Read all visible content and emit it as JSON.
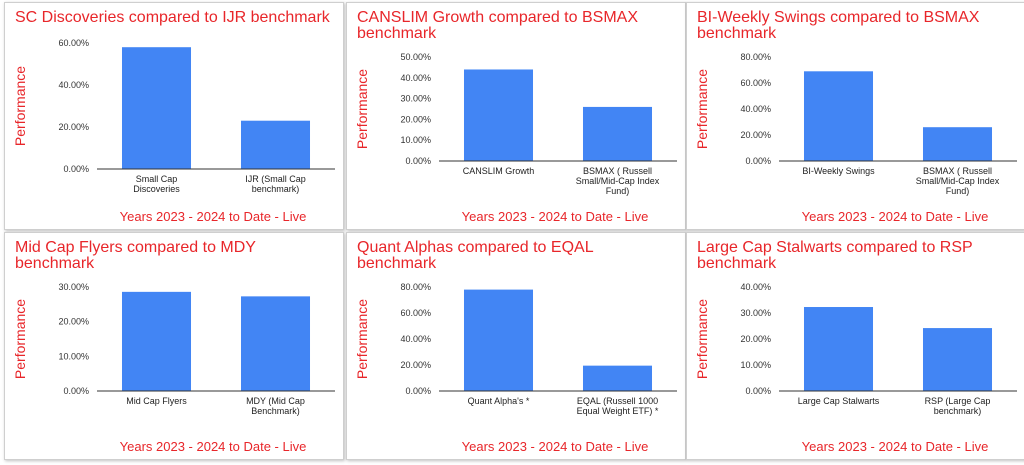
{
  "chart_data": [
    {
      "type": "bar",
      "title": "SC Discoveries compared to IJR benchmark",
      "ylabel": "Performance",
      "xlabel": "Years 2023 - 2024 to Date - Live",
      "categories": [
        "Small Cap Discoveries",
        "IJR (Small Cap benchmark)"
      ],
      "values": [
        58,
        23
      ],
      "color": "#4285f4",
      "ylim": [
        0,
        60
      ],
      "yticks": [
        {
          "value": 0,
          "label": "0.00%"
        },
        {
          "value": 20,
          "label": "20.00%"
        },
        {
          "value": 40,
          "label": "40.00%"
        },
        {
          "value": 60,
          "label": "60.00%"
        }
      ],
      "grid": false
    },
    {
      "type": "bar",
      "title": "CANSLIM Growth compared to BSMAX benchmark",
      "ylabel": "Performance",
      "xlabel": "Years 2023 - 2024 to Date - Live",
      "categories": [
        "CANSLIM Growth",
        "BSMAX ( Russell Small/Mid-Cap Index Fund)"
      ],
      "values": [
        44,
        26
      ],
      "color": "#4285f4",
      "ylim": [
        0,
        50
      ],
      "yticks": [
        {
          "value": 0,
          "label": "0.00%"
        },
        {
          "value": 10,
          "label": "10.00%"
        },
        {
          "value": 20,
          "label": "20.00%"
        },
        {
          "value": 30,
          "label": "30.00%"
        },
        {
          "value": 40,
          "label": "40.00%"
        },
        {
          "value": 50,
          "label": "50.00%"
        }
      ],
      "grid": false
    },
    {
      "type": "bar",
      "title": "BI-Weekly Swings compared to BSMAX benchmark",
      "ylabel": "Performance",
      "xlabel": "Years 2023 - 2024 to Date - Live",
      "categories": [
        "BI-Weekly Swings",
        "BSMAX ( Russell Small/Mid-Cap Index Fund)"
      ],
      "values": [
        69,
        26
      ],
      "color": "#4285f4",
      "ylim": [
        0,
        80
      ],
      "yticks": [
        {
          "value": 0,
          "label": "0.00%"
        },
        {
          "value": 20,
          "label": "20.00%"
        },
        {
          "value": 40,
          "label": "40.00%"
        },
        {
          "value": 60,
          "label": "60.00%"
        },
        {
          "value": 80,
          "label": "80.00%"
        }
      ],
      "grid": false
    },
    {
      "type": "bar",
      "title": "Mid Cap Flyers compared to MDY benchmark",
      "ylabel": "Performance",
      "xlabel": "Years 2023 - 2024 to Date - Live",
      "categories": [
        "Mid Cap Flyers",
        "MDY (Mid Cap Benchmark)"
      ],
      "values": [
        28.6,
        27.3
      ],
      "color": "#4285f4",
      "ylim": [
        0,
        30
      ],
      "yticks": [
        {
          "value": 0,
          "label": "0.00%"
        },
        {
          "value": 10,
          "label": "10.00%"
        },
        {
          "value": 20,
          "label": "20.00%"
        },
        {
          "value": 30,
          "label": "30.00%"
        }
      ],
      "grid": false
    },
    {
      "type": "bar",
      "title": "Quant Alphas compared to EQAL benchmark",
      "ylabel": "Performance",
      "xlabel": "Years 2023 - 2024 to Date - Live",
      "categories": [
        "Quant Alpha's   *",
        "EQAL (Russell 1000 Equal Weight ETF)   *"
      ],
      "values": [
        78,
        19.5
      ],
      "color": "#4285f4",
      "ylim": [
        0,
        80
      ],
      "yticks": [
        {
          "value": 0,
          "label": "0.00%"
        },
        {
          "value": 20,
          "label": "20.00%"
        },
        {
          "value": 40,
          "label": "40.00%"
        },
        {
          "value": 60,
          "label": "60.00%"
        },
        {
          "value": 80,
          "label": "80.00%"
        }
      ],
      "grid": false
    },
    {
      "type": "bar",
      "title": "Large Cap Stalwarts compared to RSP benchmark",
      "ylabel": "Performance",
      "xlabel": "Years 2023 - 2024 to Date - Live",
      "categories": [
        "Large Cap Stalwarts",
        "RSP (Large Cap benchmark)"
      ],
      "values": [
        32.3,
        24.2
      ],
      "color": "#4285f4",
      "ylim": [
        0,
        40
      ],
      "yticks": [
        {
          "value": 0,
          "label": "0.00%"
        },
        {
          "value": 10,
          "label": "10.00%"
        },
        {
          "value": 20,
          "label": "20.00%"
        },
        {
          "value": 30,
          "label": "30.00%"
        },
        {
          "value": 40,
          "label": "40.00%"
        }
      ],
      "grid": false
    }
  ]
}
